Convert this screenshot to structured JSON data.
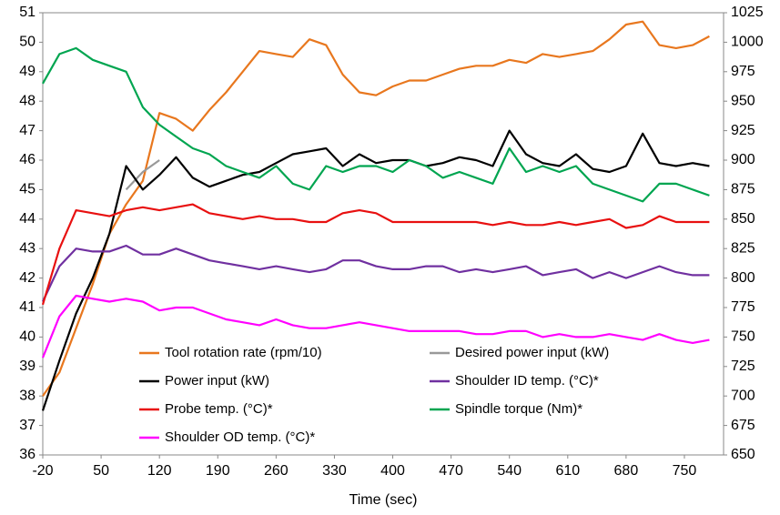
{
  "chart_data": {
    "type": "line",
    "x_label": "Time (sec)",
    "xlim": [
      -20,
      797
    ],
    "xticks": [
      -20,
      50,
      120,
      190,
      260,
      330,
      400,
      470,
      540,
      610,
      680,
      750
    ],
    "ylim": [
      36,
      51
    ],
    "yticks": [
      36,
      37,
      38,
      39,
      40,
      41,
      42,
      43,
      44,
      45,
      46,
      47,
      48,
      49,
      50,
      51
    ],
    "y2lim": [
      650,
      1025
    ],
    "y2ticks": [
      650,
      675,
      700,
      725,
      750,
      775,
      800,
      825,
      850,
      875,
      900,
      925,
      950,
      975,
      1000,
      1025
    ],
    "grid": false,
    "legend": "lower center",
    "x": [
      -20,
      0,
      20,
      40,
      60,
      80,
      100,
      120,
      140,
      160,
      180,
      200,
      220,
      240,
      260,
      280,
      300,
      320,
      340,
      360,
      380,
      400,
      420,
      440,
      460,
      480,
      500,
      520,
      540,
      560,
      580,
      600,
      620,
      640,
      660,
      680,
      700,
      720,
      740,
      760,
      780
    ],
    "series": [
      {
        "name": "Tool rotation rate (rpm/10)",
        "color": "#e8771e",
        "values": [
          38.0,
          38.8,
          40.3,
          41.8,
          43.5,
          44.5,
          45.3,
          47.6,
          47.4,
          47.0,
          47.7,
          48.3,
          49.0,
          49.7,
          49.6,
          49.5,
          50.1,
          49.9,
          48.9,
          48.3,
          48.2,
          48.5,
          48.7,
          48.7,
          48.9,
          49.1,
          49.2,
          49.2,
          49.4,
          49.3,
          49.6,
          49.5,
          49.6,
          49.7,
          50.1,
          50.6,
          50.7,
          49.9,
          49.8,
          49.9,
          50.2
        ]
      },
      {
        "name": "Desired power input (kW)",
        "color": "#999999",
        "values": [
          null,
          null,
          null,
          null,
          null,
          45.0,
          45.6,
          46.0,
          null,
          null,
          null,
          null,
          null,
          null,
          null,
          null,
          null,
          null,
          null,
          null,
          null,
          null,
          null,
          null,
          null,
          null,
          null,
          null,
          null,
          null,
          null,
          null,
          null,
          null,
          null,
          null,
          null,
          null,
          null,
          null,
          null
        ]
      },
      {
        "name": "Power input (kW)",
        "color": "#000000",
        "values": [
          37.5,
          39.2,
          40.8,
          42.0,
          43.5,
          45.8,
          45.0,
          45.5,
          46.1,
          45.4,
          45.1,
          45.3,
          45.5,
          45.6,
          45.9,
          46.2,
          46.3,
          46.4,
          45.8,
          46.2,
          45.9,
          46.0,
          46.0,
          45.8,
          45.9,
          46.1,
          46.0,
          45.8,
          47.0,
          46.2,
          45.9,
          45.8,
          46.2,
          45.7,
          45.6,
          45.8,
          46.9,
          45.9,
          45.8,
          45.9,
          45.8
        ]
      },
      {
        "name": "Shoulder ID temp. (°C)*",
        "color": "#7030a0",
        "values": [
          41.2,
          42.4,
          43.0,
          42.9,
          42.9,
          43.1,
          42.8,
          42.8,
          43.0,
          42.8,
          42.6,
          42.5,
          42.4,
          42.3,
          42.4,
          42.3,
          42.2,
          42.3,
          42.6,
          42.6,
          42.4,
          42.3,
          42.3,
          42.4,
          42.4,
          42.2,
          42.3,
          42.2,
          42.3,
          42.4,
          42.1,
          42.2,
          42.3,
          42.0,
          42.2,
          42.0,
          42.2,
          42.4,
          42.2,
          42.1,
          42.1
        ]
      },
      {
        "name": "Probe temp. (°C)*",
        "color": "#e81010",
        "values": [
          41.1,
          43.0,
          44.3,
          44.2,
          44.1,
          44.3,
          44.4,
          44.3,
          44.4,
          44.5,
          44.2,
          44.1,
          44.0,
          44.1,
          44.0,
          44.0,
          43.9,
          43.9,
          44.2,
          44.3,
          44.2,
          43.9,
          43.9,
          43.9,
          43.9,
          43.9,
          43.9,
          43.8,
          43.9,
          43.8,
          43.8,
          43.9,
          43.8,
          43.9,
          44.0,
          43.7,
          43.8,
          44.1,
          43.9,
          43.9,
          43.9
        ]
      },
      {
        "name": "Spindle torque (Nm)*",
        "color": "#00a550",
        "axis": "y2",
        "values": [
          965,
          990,
          995,
          985,
          980,
          975,
          945,
          930,
          920,
          910,
          905,
          895,
          890,
          885,
          895,
          880,
          875,
          895,
          890,
          895,
          895,
          890,
          900,
          895,
          885,
          890,
          885,
          880,
          910,
          890,
          895,
          890,
          895,
          880,
          875,
          870,
          865,
          880,
          880,
          875,
          870
        ]
      },
      {
        "name": "Shoulder OD temp. (°C)*",
        "color": "#ff00ff",
        "values": [
          39.3,
          40.7,
          41.4,
          41.3,
          41.2,
          41.3,
          41.2,
          40.9,
          41.0,
          41.0,
          40.8,
          40.6,
          40.5,
          40.4,
          40.6,
          40.4,
          40.3,
          40.3,
          40.4,
          40.5,
          40.4,
          40.3,
          40.2,
          40.2,
          40.2,
          40.2,
          40.1,
          40.1,
          40.2,
          40.2,
          40.0,
          40.1,
          40.0,
          40.0,
          40.1,
          40.0,
          39.9,
          40.1,
          39.9,
          39.8,
          39.9
        ]
      }
    ]
  }
}
